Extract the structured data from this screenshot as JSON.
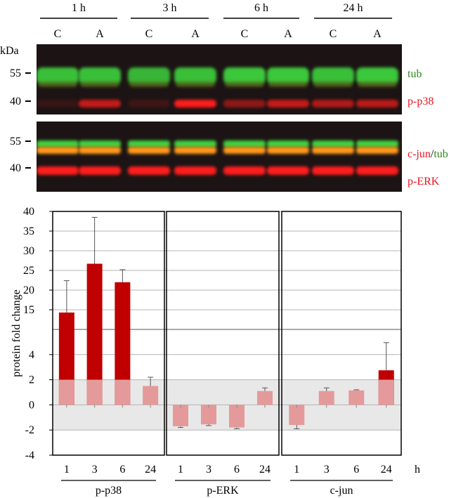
{
  "blot": {
    "timepoints": [
      "1 h",
      "3 h",
      "6 h",
      "24 h"
    ],
    "lane_labels": [
      "C",
      "A",
      "C",
      "A",
      "C",
      "A",
      "C",
      "A"
    ],
    "kda_label": "kDa",
    "panel1": {
      "markers": [
        "55",
        "40"
      ],
      "band_labels": [
        {
          "parts": [
            {
              "text": "tub",
              "color": "#2e8b1e"
            }
          ]
        },
        {
          "parts": [
            {
              "text": "p-p38",
              "color": "#e8141e"
            }
          ]
        }
      ],
      "green_intensity": [
        0.9,
        0.9,
        0.85,
        0.9,
        0.95,
        0.95,
        0.9,
        0.95
      ],
      "red_intensity": [
        0.12,
        0.75,
        0.15,
        1.0,
        0.5,
        0.75,
        0.65,
        0.7
      ]
    },
    "panel2": {
      "markers": [
        "55",
        "40"
      ],
      "band_labels": [
        {
          "parts": [
            {
              "text": "c-jun",
              "color": "#e8141e"
            },
            {
              "text": "/",
              "color": "#000000"
            },
            {
              "text": "tub",
              "color": "#2e8b1e"
            }
          ]
        },
        {
          "parts": [
            {
              "text": "p-ERK",
              "color": "#e8141e"
            }
          ]
        }
      ]
    },
    "colors": {
      "background": "#1c1414",
      "green": "#3cd23c",
      "red": "#ff1a1a",
      "orange": "#ff9a1e"
    }
  },
  "chart_data": {
    "type": "bar",
    "ylabel": "protein fold change",
    "x_unit_label": "h",
    "upper_segment": {
      "ylim": [
        10,
        40
      ],
      "ticks": [
        "15",
        "20",
        "25",
        "30",
        "35",
        "40"
      ]
    },
    "lower_segment": {
      "ylim": [
        -4,
        6
      ],
      "ticks": [
        "-4",
        "-2",
        "0",
        "2",
        "4"
      ]
    },
    "ns_band": [
      -2,
      2
    ],
    "groups": [
      {
        "name": "p-p38",
        "categories": [
          "1",
          "3",
          "6",
          "24"
        ],
        "values": [
          14.3,
          26.7,
          22.0,
          1.5
        ],
        "errors": [
          8.1,
          11.8,
          3.2,
          0.7
        ]
      },
      {
        "name": "p-ERK",
        "categories": [
          "1",
          "3",
          "6",
          "24"
        ],
        "values": [
          -1.7,
          -1.55,
          -1.8,
          1.1
        ],
        "errors": [
          0.1,
          0.1,
          0.1,
          0.25
        ]
      },
      {
        "name": "c-jun",
        "categories": [
          "1",
          "3",
          "6",
          "24"
        ],
        "values": [
          -1.6,
          1.1,
          1.15,
          2.75
        ],
        "errors": [
          0.3,
          0.25,
          0.05,
          2.2
        ]
      }
    ],
    "colors": {
      "bar": "#c00000",
      "bar_faded": "#e49a9a",
      "band": "#e8e8e8"
    }
  }
}
